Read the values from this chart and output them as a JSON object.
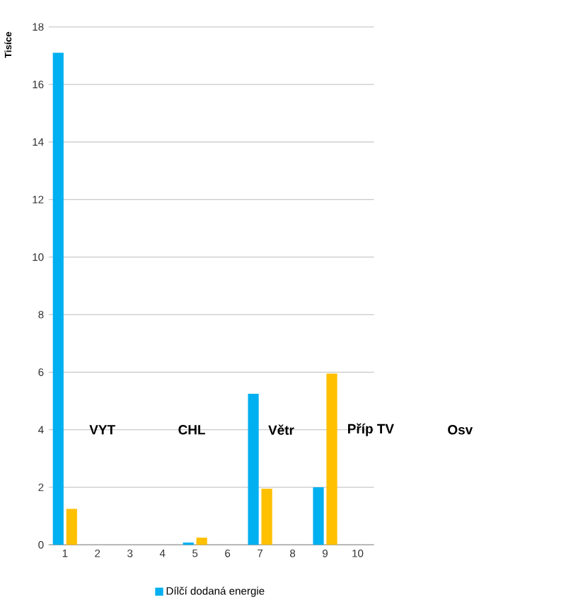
{
  "chart_data": {
    "type": "bar",
    "ylabel": "Tisíce",
    "categories": [
      "1",
      "2",
      "3",
      "4",
      "5",
      "6",
      "7",
      "8",
      "9",
      "10"
    ],
    "series": [
      {
        "name": "Dílčí dodaná energie",
        "color": "#00b0f0",
        "values": [
          17.1,
          null,
          null,
          null,
          0.08,
          null,
          5.25,
          null,
          2.0,
          null
        ]
      },
      {
        "color": "#ffc000",
        "values": [
          1.25,
          null,
          null,
          null,
          0.25,
          null,
          1.95,
          null,
          5.95,
          null
        ]
      }
    ],
    "ylim": [
      0,
      18
    ],
    "yticks": [
      0,
      2,
      4,
      6,
      8,
      10,
      12,
      14,
      16,
      18
    ],
    "grid": "y",
    "legend": "bottom",
    "annotations": [
      "VYT",
      "CHL",
      "Větr",
      "Příp TV",
      "Osv"
    ]
  }
}
